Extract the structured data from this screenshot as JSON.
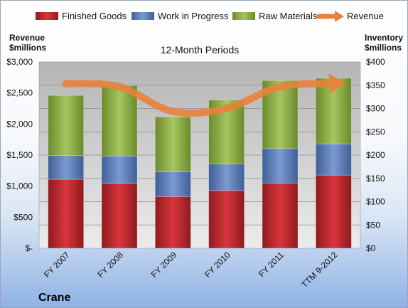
{
  "chart_data": {
    "type": "bar",
    "stacked": true,
    "title": "12-Month Periods",
    "company": "Crane",
    "categories": [
      "FY 2007",
      "FY 2008",
      "FY 2009",
      "FY 2010",
      "FY 2011",
      "TTM 9-2012"
    ],
    "left_axis": {
      "label_lines": [
        "Revenue",
        "$millions"
      ],
      "ticks": [
        "$3,000",
        "$2,500",
        "$2,000",
        "$1,500",
        "$1,000",
        "$500",
        "$-"
      ],
      "range": [
        0,
        3000
      ]
    },
    "right_axis": {
      "label_lines": [
        "Inventory",
        "$millions"
      ],
      "ticks": [
        "$400",
        "$350",
        "$300",
        "$250",
        "$200",
        "$150",
        "$100",
        "$50",
        "$0"
      ],
      "range": [
        0,
        400
      ]
    },
    "series": [
      {
        "name": "Finished Goods",
        "axis": "right",
        "color": "#c0272d",
        "values": [
          148,
          139,
          111,
          124,
          140,
          157
        ]
      },
      {
        "name": "Work in Progress",
        "axis": "right",
        "color": "#5b7fbf",
        "values": [
          51,
          59,
          53,
          57,
          74,
          67
        ]
      },
      {
        "name": "Raw Materials",
        "axis": "right",
        "color": "#8fb04a",
        "values": [
          129,
          151,
          118,
          137,
          146,
          141
        ]
      },
      {
        "name": "Revenue",
        "axis": "left",
        "type": "line",
        "color": "#e8823a",
        "values": [
          2650,
          2600,
          2200,
          2250,
          2600,
          2650
        ]
      }
    ],
    "grid": true,
    "legend_position": "top"
  }
}
